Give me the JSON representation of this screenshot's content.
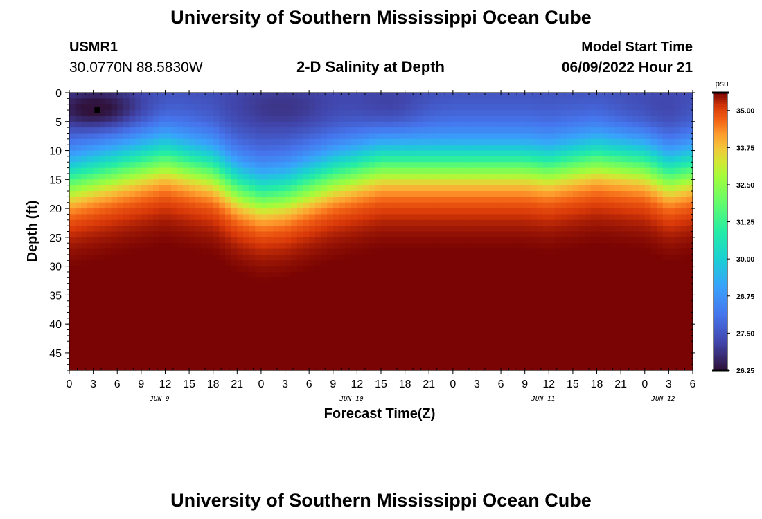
{
  "header": {
    "title": "University of Southern Mississippi Ocean Cube",
    "station": "USMR1",
    "coords": "30.0770N  88.5830W",
    "plot_title": "2-D Salinity at Depth",
    "start_label": "Model Start Time",
    "start_value": "06/09/2022 Hour 21"
  },
  "footer": {
    "title": "University of Southern Mississippi Ocean Cube"
  },
  "chart_data": {
    "type": "heatmap",
    "title": "2-D Salinity at Depth",
    "xlabel": "Forecast Time(Z)",
    "ylabel": "Depth (ft)",
    "ylim": [
      0,
      48
    ],
    "y_ticks": [
      0,
      5,
      10,
      15,
      20,
      25,
      30,
      35,
      40,
      45
    ],
    "x_tick_labels": [
      "0",
      "3",
      "6",
      "9",
      "12",
      "15",
      "18",
      "21",
      "0",
      "3",
      "6",
      "9",
      "12",
      "15",
      "18",
      "21",
      "0",
      "3",
      "6",
      "9",
      "12",
      "15",
      "18",
      "21",
      "0",
      "3",
      "6"
    ],
    "x_range_hours": [
      0,
      78
    ],
    "day_labels": [
      {
        "text": "JUN 9",
        "hour": 12
      },
      {
        "text": "JUN 10",
        "hour": 36
      },
      {
        "text": "JUN 11",
        "hour": 60
      },
      {
        "text": "JUN 12",
        "hour": 75
      }
    ],
    "colorbar": {
      "unit": "psu",
      "min": 26.25,
      "max": 35.6,
      "ticks": [
        "26.25",
        "27.50",
        "28.75",
        "30.00",
        "31.25",
        "32.50",
        "33.75",
        "35.00"
      ]
    },
    "surface_salinity_psu": 27.3,
    "bottom_salinity_psu": 35.45,
    "halocline_depth_ft": [
      [
        0,
        15
      ],
      [
        6,
        13
      ],
      [
        12,
        11
      ],
      [
        18,
        13
      ],
      [
        21,
        16
      ],
      [
        24,
        17.5
      ],
      [
        27,
        17
      ],
      [
        33,
        14
      ],
      [
        39,
        12
      ],
      [
        45,
        12
      ],
      [
        51,
        12
      ],
      [
        57,
        12
      ],
      [
        60,
        12.5
      ],
      [
        66,
        11
      ],
      [
        72,
        12
      ],
      [
        75,
        14
      ],
      [
        78,
        13
      ]
    ],
    "station_marker": {
      "hour": 3.5,
      "depth_ft": 3
    }
  }
}
